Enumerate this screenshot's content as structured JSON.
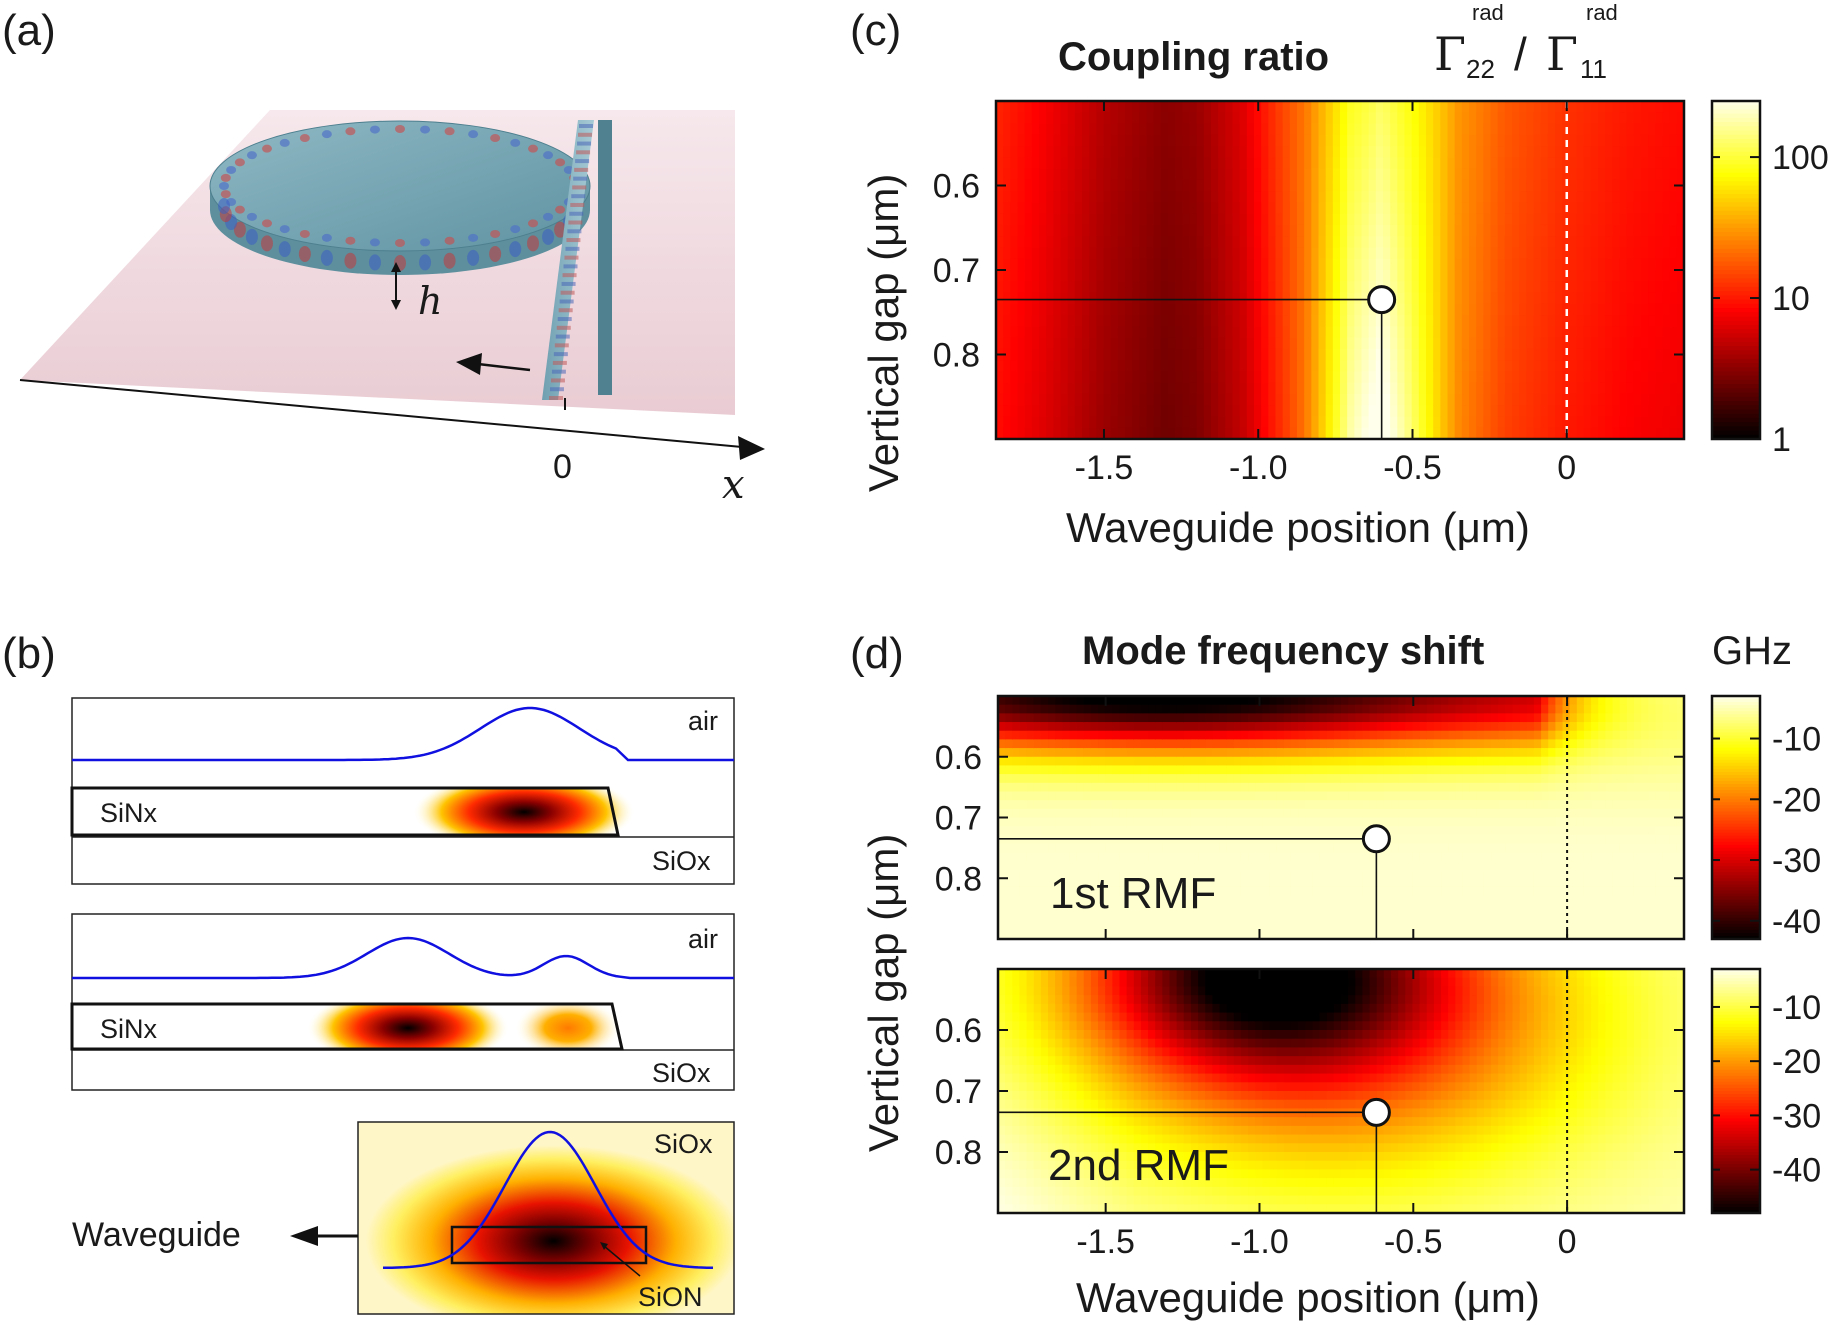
{
  "panels": {
    "a": {
      "tag": "(a)",
      "h_label": "h",
      "x_label": "x",
      "zero_label": "0"
    },
    "b": {
      "tag": "(b)",
      "mode1": {
        "top": "air",
        "core": "SiNx",
        "bottom": "SiOx"
      },
      "mode2": {
        "top": "air",
        "core": "SiNx",
        "bottom": "SiOx"
      },
      "cross": {
        "clad": "SiOx",
        "core": "SiON",
        "arrow_label": "Waveguide"
      }
    },
    "c": {
      "tag": "(c)"
    },
    "d": {
      "tag": "(d)"
    }
  },
  "colors": {
    "hot_dark": "#000000",
    "hot_red": "#e00000",
    "hot_yellow": "#ffff40",
    "hot_white": "#fffff2",
    "profile_line": "#1010e0"
  },
  "chart_data": [
    {
      "id": "c",
      "type": "heatmap",
      "title": "Coupling ratio",
      "title_formula": {
        "symbol": "Γ",
        "num_sub": "22",
        "den_sub": "11",
        "sup": "rad",
        "slash": "/"
      },
      "xlabel": "Waveguide position (μm)",
      "ylabel": "Vertical gap (μm)",
      "xlim": [
        -1.85,
        0.38
      ],
      "ylim": [
        0.5,
        0.9
      ],
      "y_inverted": true,
      "x_ticks": [
        -1.5,
        -1.0,
        -0.5,
        0
      ],
      "x_tick_labels": [
        "-1.5",
        "-1.0",
        "-0.5",
        "0"
      ],
      "y_ticks": [
        0.6,
        0.7,
        0.8
      ],
      "y_tick_labels": [
        "0.6",
        "0.7",
        "0.8"
      ],
      "colorbar": {
        "scale": "log",
        "range": [
          1,
          250
        ],
        "ticks": [
          1,
          10,
          100
        ],
        "tick_labels": [
          "1",
          "10",
          "100"
        ],
        "colormap": "hot"
      },
      "marker": {
        "x": -0.6,
        "y": 0.735
      },
      "dashed_vline_x": 0,
      "dashed_vline_style": "white-dashed",
      "column_profile_x": [
        -1.85,
        -1.7,
        -1.5,
        -1.3,
        -1.2,
        -1.05,
        -0.85,
        -0.7,
        -0.6,
        -0.5,
        -0.35,
        -0.2,
        0.0,
        0.2,
        0.38
      ],
      "column_profile_log10": [
        1.0,
        0.85,
        0.6,
        0.45,
        0.5,
        0.75,
        1.35,
        2.1,
        2.3,
        2.0,
        1.45,
        1.2,
        1.05,
        0.95,
        0.9
      ]
    },
    {
      "id": "d1",
      "type": "heatmap",
      "title": "Mode frequency shift",
      "unit_label": "GHz",
      "inset_label": "1st RMF",
      "xlim": [
        -1.85,
        0.38
      ],
      "ylim": [
        0.5,
        0.9
      ],
      "y_inverted": true,
      "y_ticks": [
        0.6,
        0.7,
        0.8
      ],
      "y_tick_labels": [
        "0.6",
        "0.7",
        "0.8"
      ],
      "colorbar": {
        "range": [
          -43,
          -3
        ],
        "ticks": [
          -10,
          -20,
          -30,
          -40
        ],
        "tick_labels": [
          "-10",
          "-20",
          "-30",
          "-40"
        ],
        "colormap": "hot"
      },
      "marker": {
        "x": -0.62,
        "y": 0.735
      },
      "dotted_vline_x": 0
    },
    {
      "id": "d2",
      "type": "heatmap",
      "inset_label": "2nd RMF",
      "xlabel": "Waveguide position (μm)",
      "xlim": [
        -1.85,
        0.38
      ],
      "ylim": [
        0.5,
        0.9
      ],
      "y_inverted": true,
      "x_ticks": [
        -1.5,
        -1.0,
        -0.5,
        0
      ],
      "x_tick_labels": [
        "-1.5",
        "-1.0",
        "-0.5",
        "0"
      ],
      "y_ticks": [
        0.6,
        0.7,
        0.8
      ],
      "y_tick_labels": [
        "0.6",
        "0.7",
        "0.8"
      ],
      "colorbar": {
        "range": [
          -48,
          -3
        ],
        "ticks": [
          -10,
          -20,
          -30,
          -40
        ],
        "tick_labels": [
          "-10",
          "-20",
          "-30",
          "-40"
        ],
        "colormap": "hot"
      },
      "marker": {
        "x": -0.62,
        "y": 0.735
      },
      "dotted_vline_x": 0
    }
  ],
  "shared": {
    "d_ylabel": "Vertical gap (μm)"
  }
}
